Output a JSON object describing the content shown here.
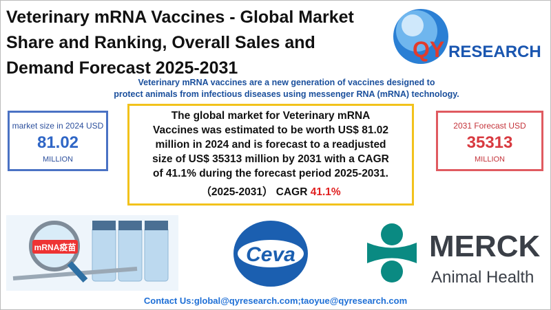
{
  "header": {
    "title_lines": [
      "Veterinary mRNA Vaccines - Global Market",
      "Share and Ranking, Overall Sales and",
      "Demand Forecast 2025-2031"
    ],
    "logo": {
      "qy": "QY",
      "rest": "RESEARCH"
    }
  },
  "description": [
    "Veterinary mRNA vaccines are a new generation of vaccines designed to",
    "protect animals from infectious diseases using messenger RNA (mRNA) technology."
  ],
  "left_box": {
    "label": "market size in 2024 USD",
    "value": "81.02",
    "unit": "MILLION"
  },
  "right_box": {
    "label": "2031 Forecast  USD",
    "value": "35313",
    "unit": "MILLION"
  },
  "summary": {
    "lines": [
      "The global market for Veterinary mRNA",
      "Vaccines was estimated to be worth US$ 81.02",
      "million in 2024 and is forecast to a readjusted",
      "size of US$ 35313 million by 2031 with a CAGR",
      "of 41.1% during the forecast period 2025-2031."
    ],
    "cagr_label": "（2025-2031） CAGR ",
    "cagr_value": "41.1%"
  },
  "images": {
    "vaccine_tag": "mRNA疫苗",
    "ceva": "Ceva",
    "merck": "MERCK",
    "merck_sub": "Animal Health"
  },
  "footer": {
    "contact": "Contact Us:global@qyresearch.com;taoyue@qyresearch.com"
  }
}
